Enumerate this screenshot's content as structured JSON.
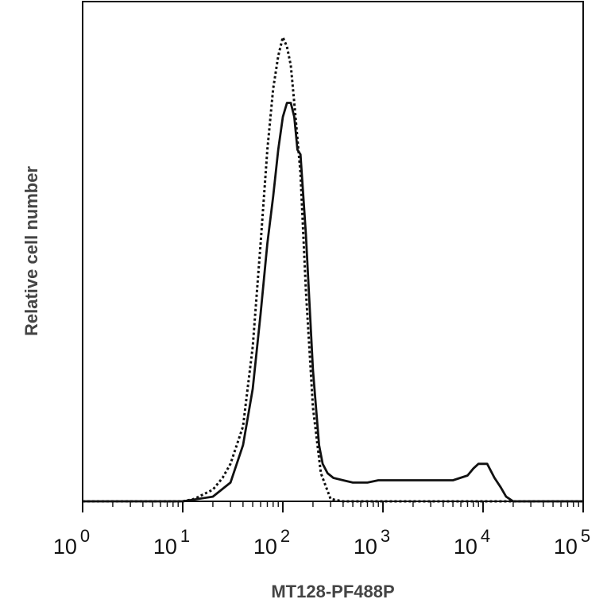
{
  "chart_data": {
    "type": "line",
    "title": "",
    "xlabel": "MT128-PF488P",
    "ylabel": "Relative cell number",
    "x_scale": "log",
    "xlim": [
      1,
      100000
    ],
    "ylim": [
      0,
      100
    ],
    "grid": false,
    "legend": "none",
    "x_ticks": [
      {
        "base": "10",
        "exp": "0",
        "value": 1
      },
      {
        "base": "10",
        "exp": "1",
        "value": 10
      },
      {
        "base": "10",
        "exp": "2",
        "value": 100
      },
      {
        "base": "10",
        "exp": "3",
        "value": 1000
      },
      {
        "base": "10",
        "exp": "4",
        "value": 10000
      },
      {
        "base": "10",
        "exp": "5",
        "value": 100000
      }
    ],
    "series": [
      {
        "style": "dotted",
        "color": "#111111",
        "x": [
          1,
          10,
          13,
          20,
          25,
          30,
          40,
          50,
          60,
          70,
          80,
          90,
          100,
          110,
          120,
          130,
          150,
          170,
          200,
          240,
          300,
          400,
          1000,
          10000,
          100000
        ],
        "y": [
          0,
          0,
          0.5,
          2.5,
          5,
          8,
          16,
          33,
          55,
          75,
          88,
          95,
          99,
          97,
          93,
          85,
          70,
          45,
          20,
          6,
          0.5,
          0,
          0,
          0,
          0
        ]
      },
      {
        "style": "solid",
        "color": "#111111",
        "x": [
          1,
          10,
          20,
          30,
          40,
          50,
          60,
          70,
          80,
          90,
          100,
          110,
          120,
          130,
          140,
          150,
          170,
          200,
          230,
          250,
          280,
          320,
          400,
          500,
          700,
          900,
          1000,
          1200,
          1500,
          2000,
          3000,
          5000,
          7000,
          8000,
          9000,
          10000,
          11000,
          13000,
          15000,
          17000,
          20000,
          100000
        ],
        "y": [
          0,
          0,
          1,
          4,
          12,
          24,
          40,
          55,
          65,
          75,
          82,
          85,
          85,
          82,
          75,
          74,
          57,
          28,
          12,
          8,
          6,
          5,
          4.5,
          4,
          4,
          4.5,
          4.5,
          4.5,
          4.5,
          4.5,
          4.5,
          4.5,
          5.5,
          7,
          8,
          8,
          8,
          5,
          3,
          1,
          0,
          0
        ]
      }
    ]
  }
}
